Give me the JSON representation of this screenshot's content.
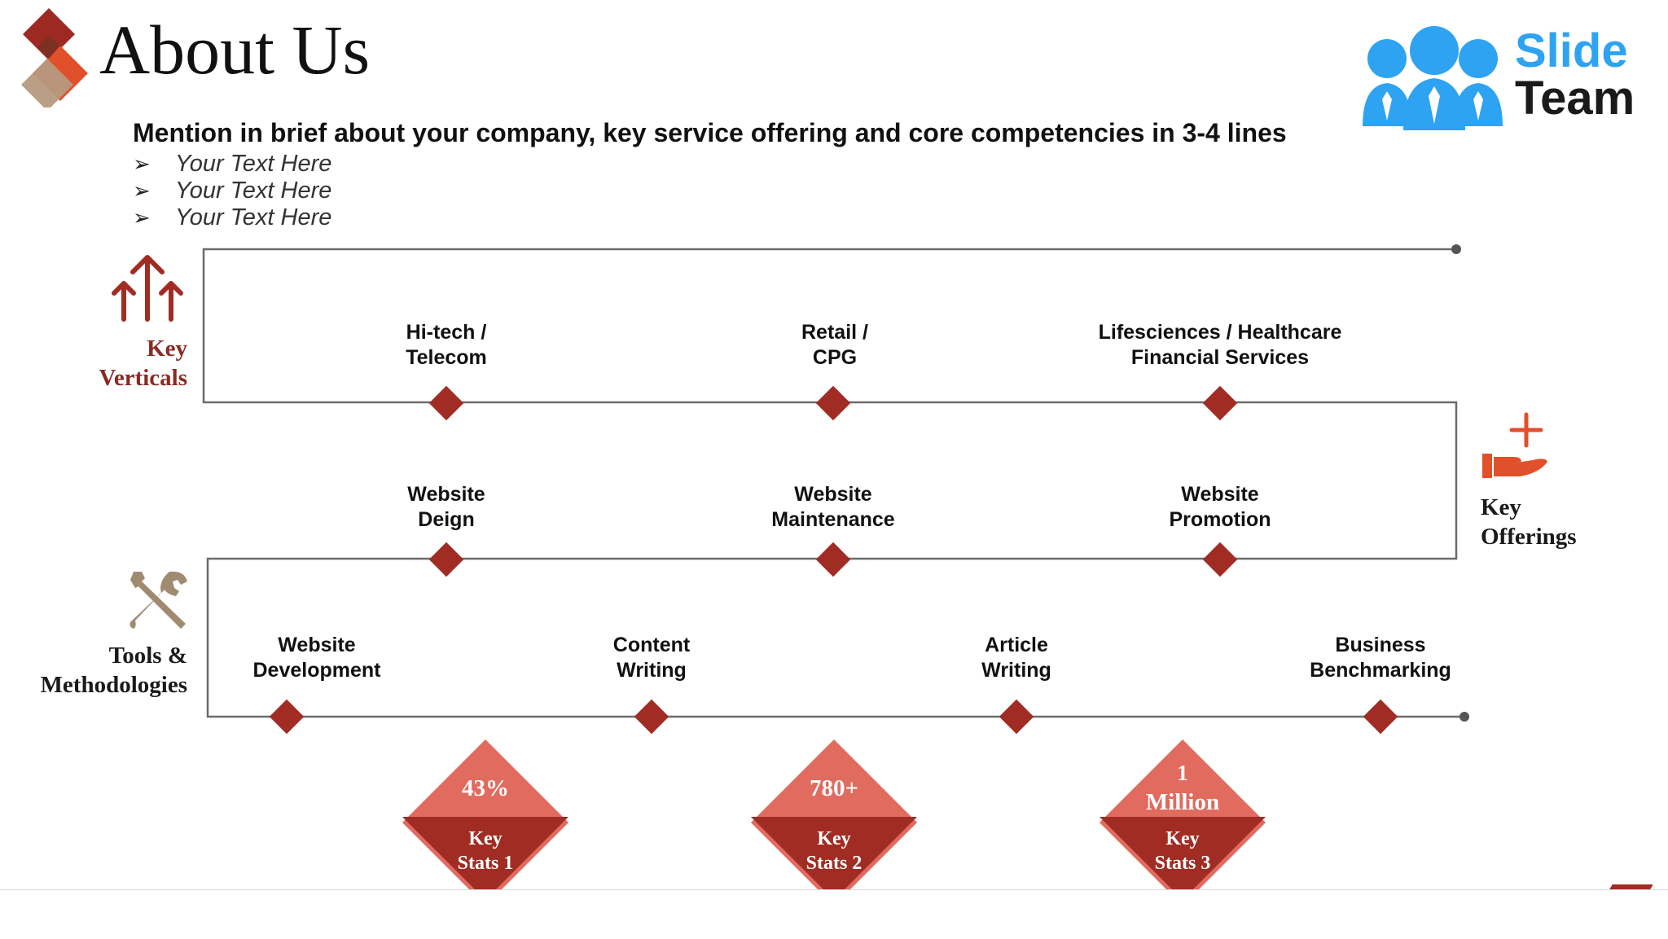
{
  "header": {
    "title": "About Us",
    "subtitle": "Mention in brief about your company, key service offering and core competencies in 3-4 lines",
    "bullet_icon": "arrowhead-bullet",
    "bullets": [
      "Your Text Here",
      "Your Text Here",
      "Your Text Here"
    ]
  },
  "logo": {
    "line1": "Slide",
    "line2": "Team",
    "icon": "people-group-icon"
  },
  "sections": {
    "verticals": {
      "label_line1": "Key",
      "label_line2": "Verticals",
      "icon": "arrows-up-icon",
      "items": [
        {
          "line1": "Hi-tech /",
          "line2": "Telecom"
        },
        {
          "line1": "Retail /",
          "line2": "CPG"
        },
        {
          "line1": "Lifesciences / Healthcare",
          "line2": "Financial Services"
        }
      ]
    },
    "offerings": {
      "label_line1": "Key",
      "label_line2": "Offerings",
      "icon": "hand-plus-icon",
      "items": [
        {
          "line1": "Website",
          "line2": "Deign"
        },
        {
          "line1": "Website",
          "line2": "Maintenance"
        },
        {
          "line1": "Website",
          "line2": "Promotion"
        }
      ]
    },
    "tools": {
      "label_line1": "Tools &",
      "label_line2": "Methodologies",
      "icon": "wrench-screwdriver-icon",
      "items": [
        {
          "line1": "Website",
          "line2": "Development"
        },
        {
          "line1": "Content",
          "line2": "Writing"
        },
        {
          "line1": "Article",
          "line2": "Writing"
        },
        {
          "line1": "Business",
          "line2": "Benchmarking"
        }
      ]
    }
  },
  "stats": [
    {
      "value_line1": "43%",
      "value_line2": "",
      "label_line1": "Key",
      "label_line2": "Stats 1"
    },
    {
      "value_line1": "780+",
      "value_line2": "",
      "label_line1": "Key",
      "label_line2": "Stats 2"
    },
    {
      "value_line1": "1",
      "value_line2": "Million",
      "label_line1": "Key",
      "label_line2": "Stats 3"
    }
  ],
  "colors": {
    "accent_dark": "#9c2a22",
    "accent_light": "#e06b5e",
    "accent_orange": "#e0502b",
    "tan": "#a08a70",
    "line": "#666666",
    "logo_blue": "#2ea3f2",
    "label_red": "#8b2a22"
  }
}
